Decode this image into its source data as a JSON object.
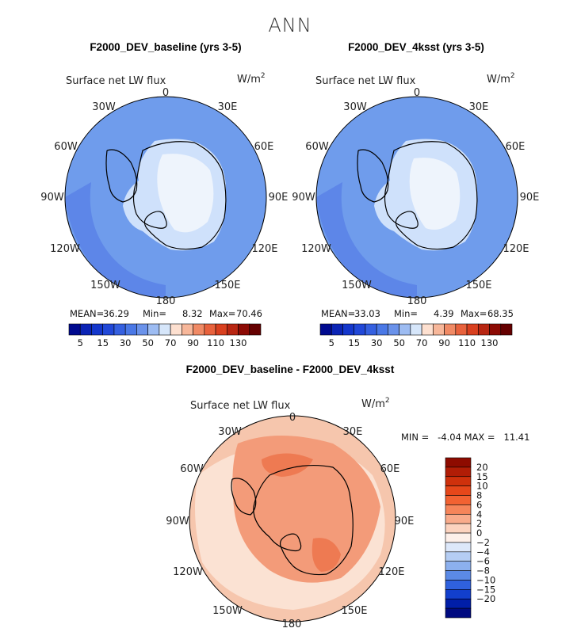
{
  "title": "ANN",
  "colors": {
    "ocean_base": "#6f9cec",
    "ocean_edge": "#5d86e8",
    "continent_light": "#cfe1fb",
    "continent_pale": "#eef4fc",
    "coast": "#000000",
    "diff_base": "#f6c6ad",
    "diff_mid": "#f39b79",
    "diff_high": "#ee7a52",
    "diff_pale": "#fbe2d3"
  },
  "chart_data": [
    {
      "id": "baseline",
      "type": "heatmap",
      "projection": "south-polar-stereographic",
      "title": "F2000_DEV_baseline (yrs 3-5)",
      "variable": "Surface net LW flux",
      "units_base": "W/m",
      "units_exp": "2",
      "longitude_labels": [
        "0",
        "30E",
        "60E",
        "90E",
        "120E",
        "150E",
        "180",
        "150W",
        "120W",
        "90W",
        "60W",
        "30W"
      ],
      "stats": {
        "mean_label": "MEAN=",
        "mean": "36.29",
        "min_label": "Min=",
        "min": "8.32",
        "max_label": "Max=",
        "max": "70.46"
      },
      "colorbar": {
        "orientation": "horizontal",
        "levels": [
          5,
          10,
          15,
          20,
          25,
          30,
          40,
          50,
          60,
          70,
          80,
          90,
          100,
          110,
          120,
          130
        ],
        "tick_labels": [
          "5",
          "15",
          "30",
          "50",
          "70",
          "90",
          "110",
          "130"
        ],
        "colors": [
          "#000a8f",
          "#0b24b5",
          "#1437cc",
          "#2148d8",
          "#3560e0",
          "#4a78e6",
          "#6a92ea",
          "#9dbcf2",
          "#d6e6fa",
          "#fde0d0",
          "#f7b79a",
          "#f08a65",
          "#e8623d",
          "#d9401f",
          "#b82612",
          "#8c0a04",
          "#650000"
        ]
      }
    },
    {
      "id": "4ksst",
      "type": "heatmap",
      "projection": "south-polar-stereographic",
      "title": "F2000_DEV_4ksst (yrs 3-5)",
      "variable": "Surface net LW flux",
      "units_base": "W/m",
      "units_exp": "2",
      "longitude_labels": [
        "0",
        "30E",
        "60E",
        "90E",
        "120E",
        "150E",
        "180",
        "150W",
        "120W",
        "90W",
        "60W",
        "30W"
      ],
      "stats": {
        "mean_label": "MEAN=",
        "mean": "33.03",
        "min_label": "Min=",
        "min": "4.39",
        "max_label": "Max=",
        "max": "68.35"
      },
      "colorbar": {
        "orientation": "horizontal",
        "levels": [
          5,
          10,
          15,
          20,
          25,
          30,
          40,
          50,
          60,
          70,
          80,
          90,
          100,
          110,
          120,
          130
        ],
        "tick_labels": [
          "5",
          "15",
          "30",
          "50",
          "70",
          "90",
          "110",
          "130"
        ],
        "colors": [
          "#000a8f",
          "#0b24b5",
          "#1437cc",
          "#2148d8",
          "#3560e0",
          "#4a78e6",
          "#6a92ea",
          "#9dbcf2",
          "#d6e6fa",
          "#fde0d0",
          "#f7b79a",
          "#f08a65",
          "#e8623d",
          "#d9401f",
          "#b82612",
          "#8c0a04",
          "#650000"
        ]
      }
    },
    {
      "id": "difference",
      "type": "heatmap",
      "projection": "south-polar-stereographic",
      "title": "F2000_DEV_baseline - F2000_DEV_4ksst",
      "variable": "Surface net LW flux",
      "units_base": "W/m",
      "units_exp": "2",
      "longitude_labels": [
        "0",
        "30E",
        "60E",
        "90E",
        "120E",
        "150E",
        "180",
        "150W",
        "120W",
        "90W",
        "60W",
        "30W"
      ],
      "stats_line": "MIN =   -4.04 MAX =   11.41",
      "colorbar": {
        "orientation": "vertical",
        "levels": [
          20,
          15,
          10,
          8,
          6,
          4,
          2,
          0,
          -2,
          -4,
          -6,
          -8,
          -10,
          -15,
          -20
        ],
        "tick_labels": [
          "20",
          "15",
          "10",
          "8",
          "6",
          "4",
          "2",
          "0",
          "−20",
          "−15",
          "−10",
          "−8",
          "−6",
          "−4",
          "−2"
        ],
        "tick_labels_ordered": [
          "20",
          "15",
          "10",
          "8",
          "6",
          "4",
          "2",
          "0",
          "−2",
          "−4",
          "−6",
          "−8",
          "−10",
          "−15",
          "−20"
        ],
        "colors": [
          "#8e0b00",
          "#b11d06",
          "#cf310c",
          "#e6471a",
          "#f26232",
          "#f6855a",
          "#f9ab8b",
          "#fcd3bf",
          "#fdf0ea",
          "#dde8fa",
          "#b5cdf3",
          "#8cb0ee",
          "#5b8ae6",
          "#2f61de",
          "#123fcd",
          "#001ea8",
          "#000a80"
        ]
      }
    }
  ]
}
